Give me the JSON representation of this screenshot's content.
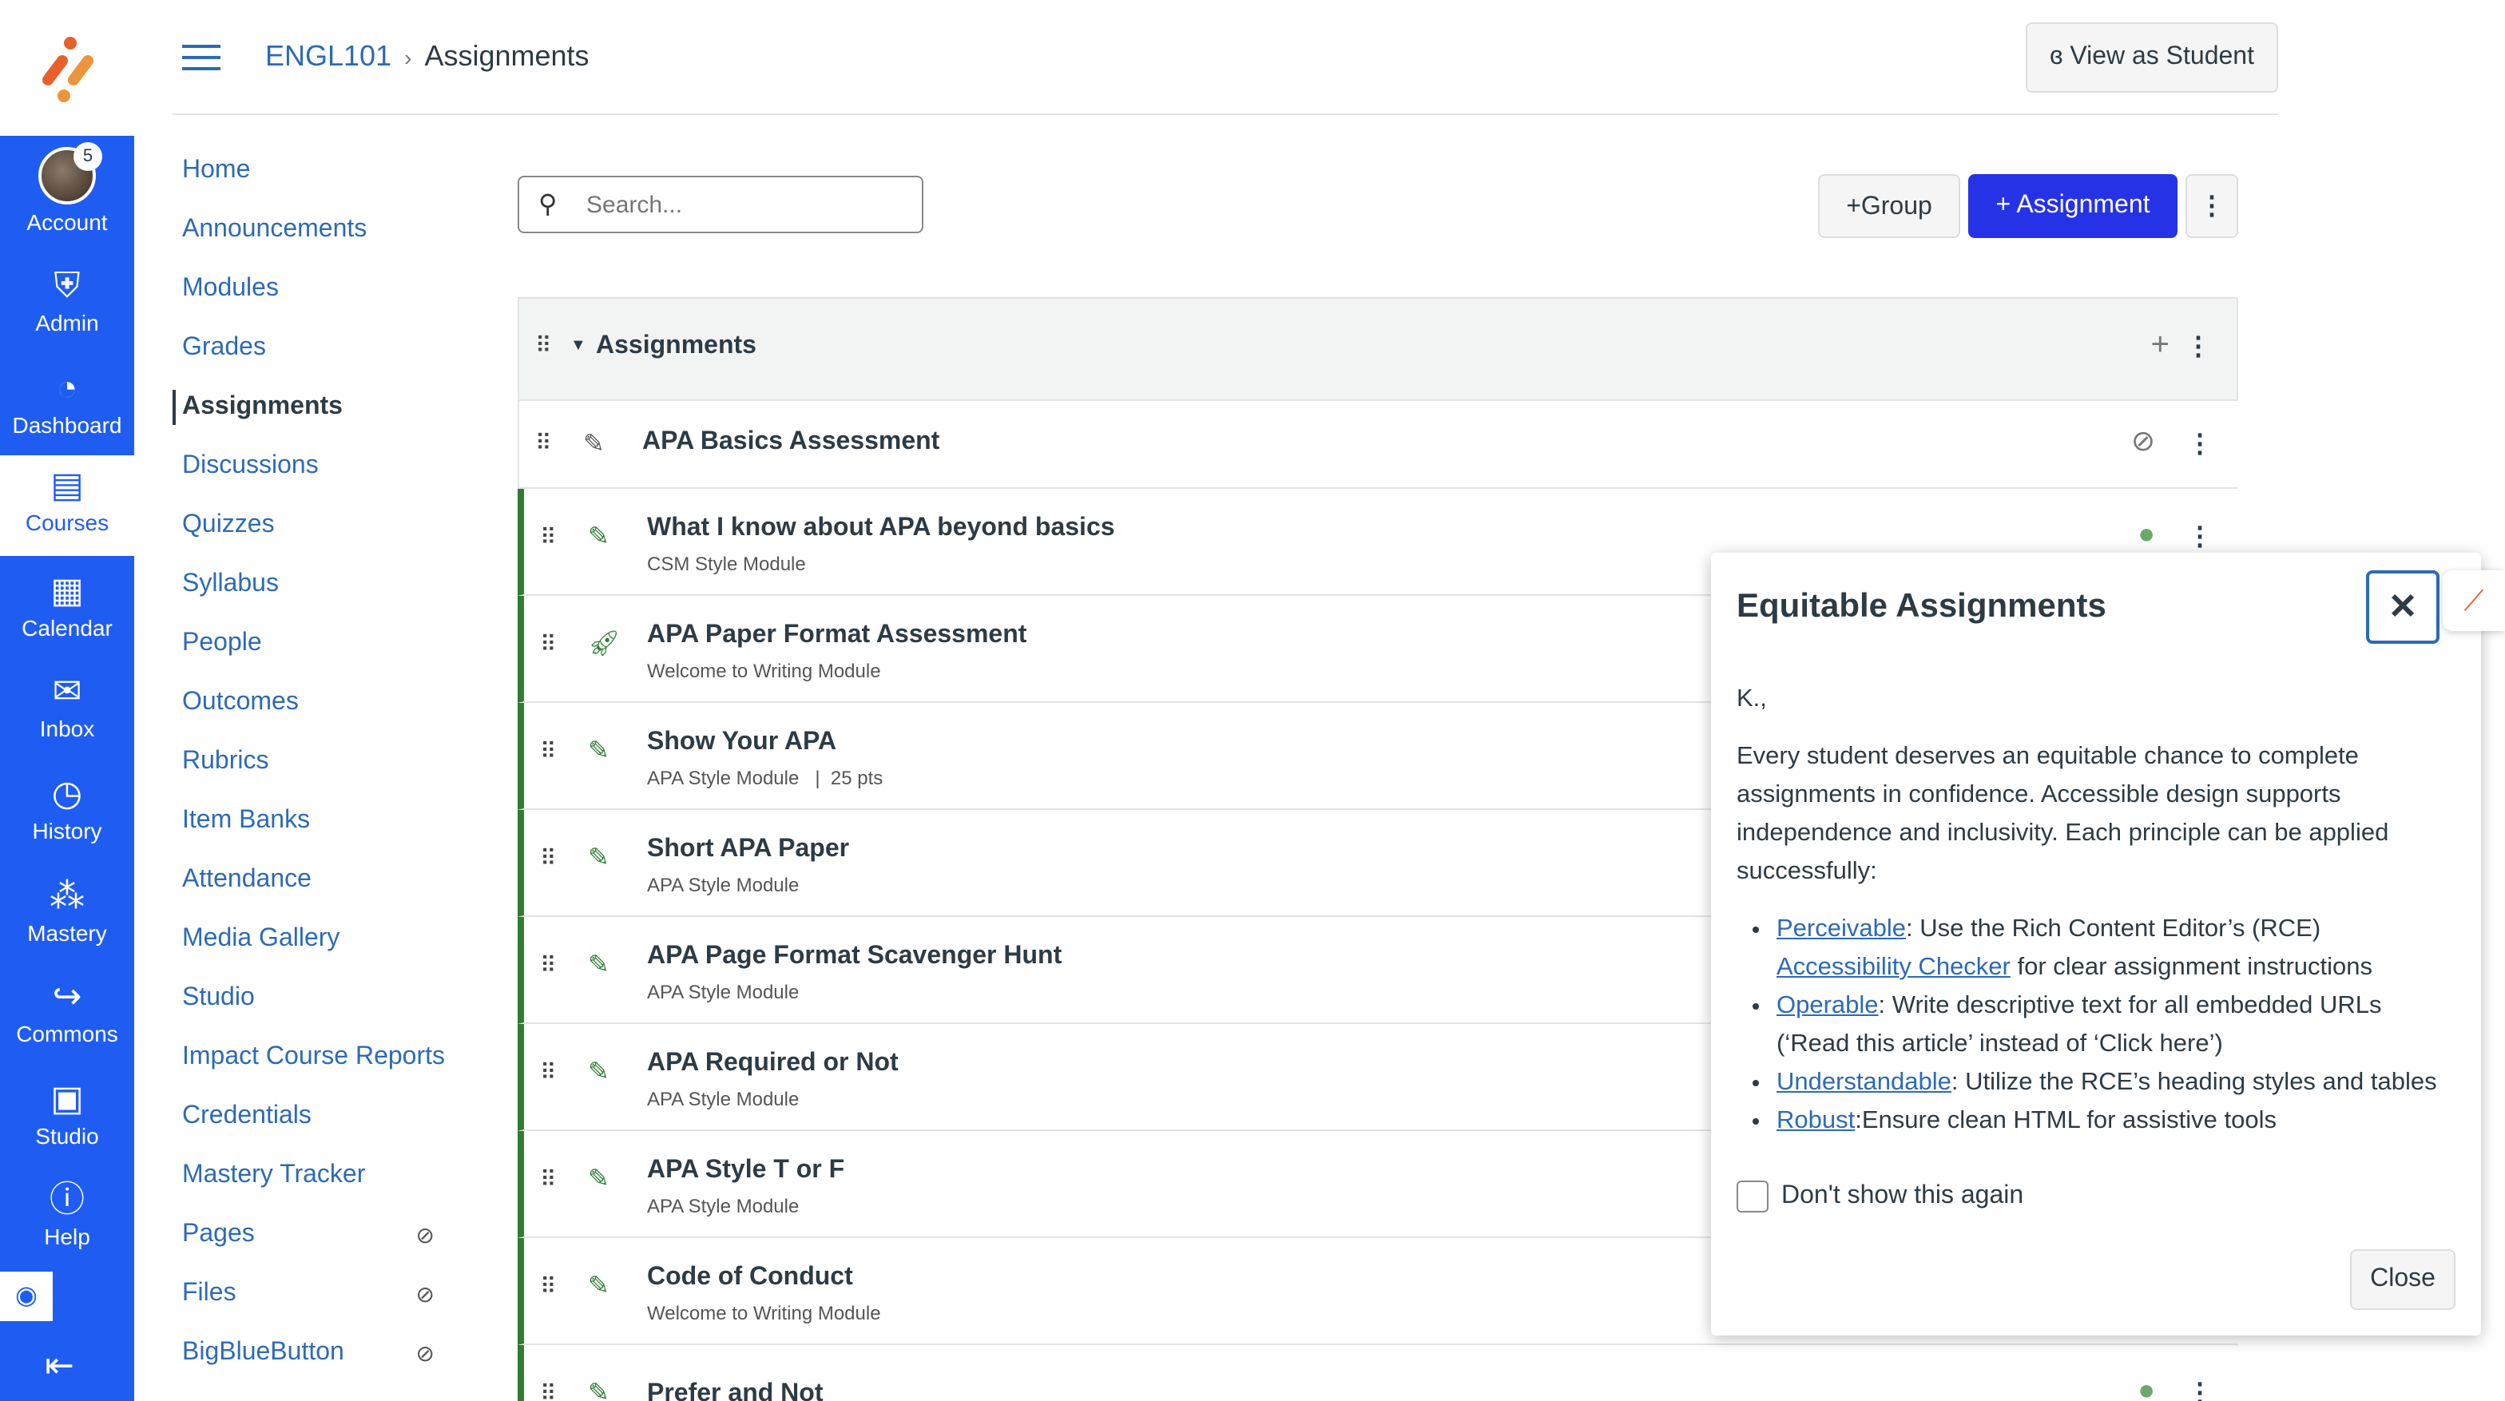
{
  "global_nav": {
    "account": "Account",
    "badge": "5",
    "admin": "Admin",
    "dashboard": "Dashboard",
    "courses": "Courses",
    "calendar": "Calendar",
    "inbox": "Inbox",
    "history": "History",
    "mastery": "Mastery",
    "commons": "Commons",
    "studio": "Studio",
    "help": "Help"
  },
  "breadcrumb": {
    "course": "ENGL101",
    "page": "Assignments"
  },
  "view_as_student": "View as Student",
  "course_nav": [
    "Home",
    "Announcements",
    "Modules",
    "Grades",
    "Assignments",
    "Discussions",
    "Quizzes",
    "Syllabus",
    "People",
    "Outcomes",
    "Rubrics",
    "Item Banks",
    "Attendance",
    "Media Gallery",
    "Studio",
    "Impact Course Reports",
    "Credentials",
    "Mastery Tracker",
    "Pages",
    "Files",
    "BigBlueButton"
  ],
  "search": {
    "placeholder": "Search..."
  },
  "toolbar": {
    "group": "Group",
    "assignment": "Assignment"
  },
  "group": {
    "title": "Assignments"
  },
  "assignments": [
    {
      "title": "APA Basics Assessment",
      "sub": "",
      "published": false,
      "icon": "assignment-icon"
    },
    {
      "title": "What I know about APA beyond basics",
      "sub": "CSM Style Module",
      "published": true,
      "icon": "assignment-icon"
    },
    {
      "title": "APA Paper Format Assessment",
      "sub": "Welcome to Writing Module",
      "published": true,
      "icon": "quiz-rocket-icon"
    },
    {
      "title": "Show Your APA",
      "sub": "APA Style Module   |  25 pts",
      "published": true,
      "icon": "assignment-icon"
    },
    {
      "title": "Short APA Paper",
      "sub": "APA Style Module",
      "published": true,
      "icon": "assignment-icon"
    },
    {
      "title": "APA Page Format Scavenger Hunt",
      "sub": "APA Style Module",
      "published": true,
      "icon": "assignment-icon"
    },
    {
      "title": "APA Required or Not",
      "sub": "APA Style Module",
      "published": true,
      "icon": "assignment-icon"
    },
    {
      "title": "APA Style T or F",
      "sub": "APA Style Module",
      "published": true,
      "icon": "assignment-icon"
    },
    {
      "title": "Code of Conduct",
      "sub": "Welcome to Writing Module",
      "published": true,
      "icon": "assignment-icon"
    },
    {
      "title": "Prefer and Not",
      "sub": "",
      "published": true,
      "icon": "assignment-icon"
    }
  ],
  "modal": {
    "title": "Equitable Assignments",
    "greeting": "K.,",
    "intro": "Every student deserves an equitable chance to complete assignments in confidence. Accessible design supports independence and inclusivity. Each principle can be applied successfully:",
    "items": [
      {
        "link": "Perceivable",
        "text": ": Use the Rich Content Editor’s (RCE) ",
        "link2": "Accessibility Checker",
        "text2": " for clear assignment instructions"
      },
      {
        "link": "Operable",
        "text": ": Write descriptive text for all embedded URLs (‘Read this article’ instead of ‘Click here’)"
      },
      {
        "link": "Understandable",
        "text": ": Utilize the RCE’s heading styles and tables"
      },
      {
        "link": "Robust",
        "text": ":Ensure clean HTML for assistive tools"
      }
    ],
    "checkbox": "Don't show this again",
    "close": "Close"
  },
  "colors": {
    "nav": "#1f5df2",
    "primary_button": "#2632e6",
    "published": "#2e7d32",
    "link": "#2d6ab5"
  }
}
